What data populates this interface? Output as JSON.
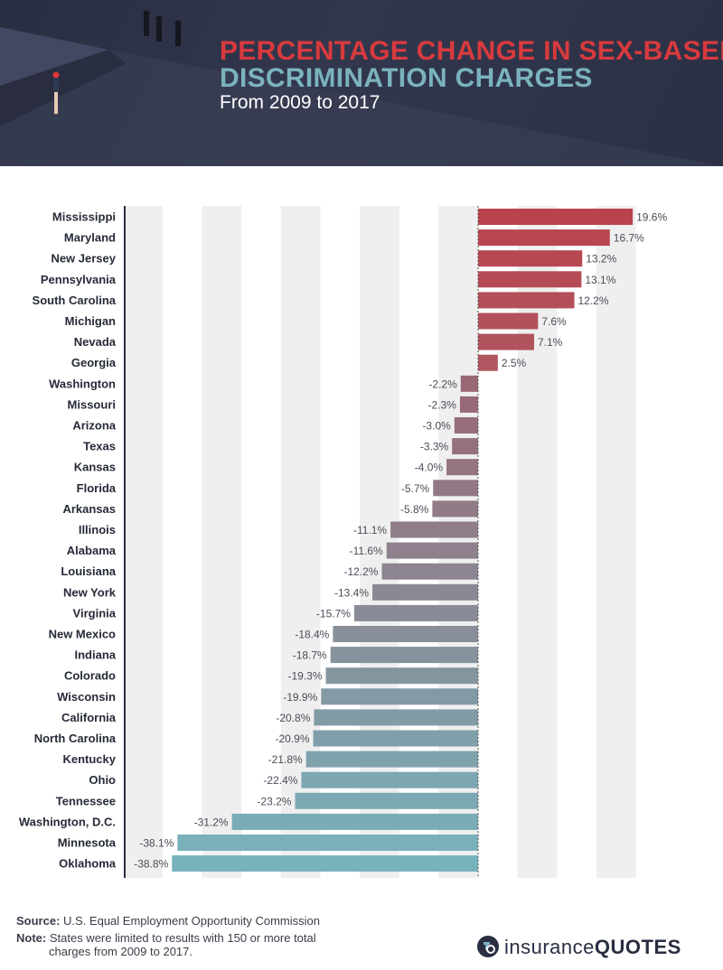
{
  "header": {
    "title_line1": "PERCENTAGE CHANGE IN SEX-BASED",
    "title_line2": "DISCRIMINATION CHARGES",
    "subtitle": "From 2009 to 2017"
  },
  "colors": {
    "header_bg": "#2e3348",
    "title_red": "#d83a3e",
    "title_teal": "#7ab3be",
    "positive_bar": "#b9434d",
    "negative_start": "#9a6774",
    "negative_end": "#77b3bd",
    "grid_band": "#efefef"
  },
  "chart_data": {
    "type": "bar",
    "orientation": "horizontal",
    "categories": [
      "Mississippi",
      "Maryland",
      "New Jersey",
      "Pennsylvania",
      "South Carolina",
      "Michigan",
      "Nevada",
      "Georgia",
      "Washington",
      "Missouri",
      "Arizona",
      "Texas",
      "Kansas",
      "Florida",
      "Arkansas",
      "Illinois",
      "Alabama",
      "Louisiana",
      "New York",
      "Virginia",
      "New Mexico",
      "Indiana",
      "Colorado",
      "Wisconsin",
      "California",
      "North Carolina",
      "Kentucky",
      "Ohio",
      "Tennessee",
      "Washington, D.C.",
      "Minnesota",
      "Oklahoma"
    ],
    "values": [
      19.6,
      16.7,
      13.2,
      13.1,
      12.2,
      7.6,
      7.1,
      2.5,
      -2.2,
      -2.3,
      -3.0,
      -3.3,
      -4.0,
      -5.7,
      -5.8,
      -11.1,
      -11.6,
      -12.2,
      -13.4,
      -15.7,
      -18.4,
      -18.7,
      -19.3,
      -19.9,
      -20.8,
      -20.9,
      -21.8,
      -22.4,
      -23.2,
      -31.2,
      -38.1,
      -38.8
    ],
    "value_labels": [
      "19.6%",
      "16.7%",
      "13.2%",
      "13.1%",
      "12.2%",
      "7.6%",
      "7.1%",
      "2.5%",
      "-2.2%",
      "-2.3%",
      "-3.0%",
      "-3.3%",
      "-4.0%",
      "-5.7%",
      "-5.8%",
      "-11.1%",
      "-11.6%",
      "-12.2%",
      "-13.4%",
      "-15.7%",
      "-18.4%",
      "-18.7%",
      "-19.3%",
      "-19.9%",
      "-20.8%",
      "-20.9%",
      "-21.8%",
      "-22.4%",
      "-23.2%",
      "-31.2%",
      "-38.1%",
      "-38.8%"
    ],
    "unit": "%",
    "xlim": [
      -45,
      25
    ],
    "grid": true
  },
  "footer": {
    "source_label": "Source:",
    "source_text": "U.S. Equal Employment Opportunity Commission",
    "note_label": "Note:",
    "note_text_1": "States were limited to results with 150 or more total",
    "note_text_2": "charges from 2009 to 2017.",
    "logo_text_1": "insurance",
    "logo_text_2": "QUOTES"
  }
}
